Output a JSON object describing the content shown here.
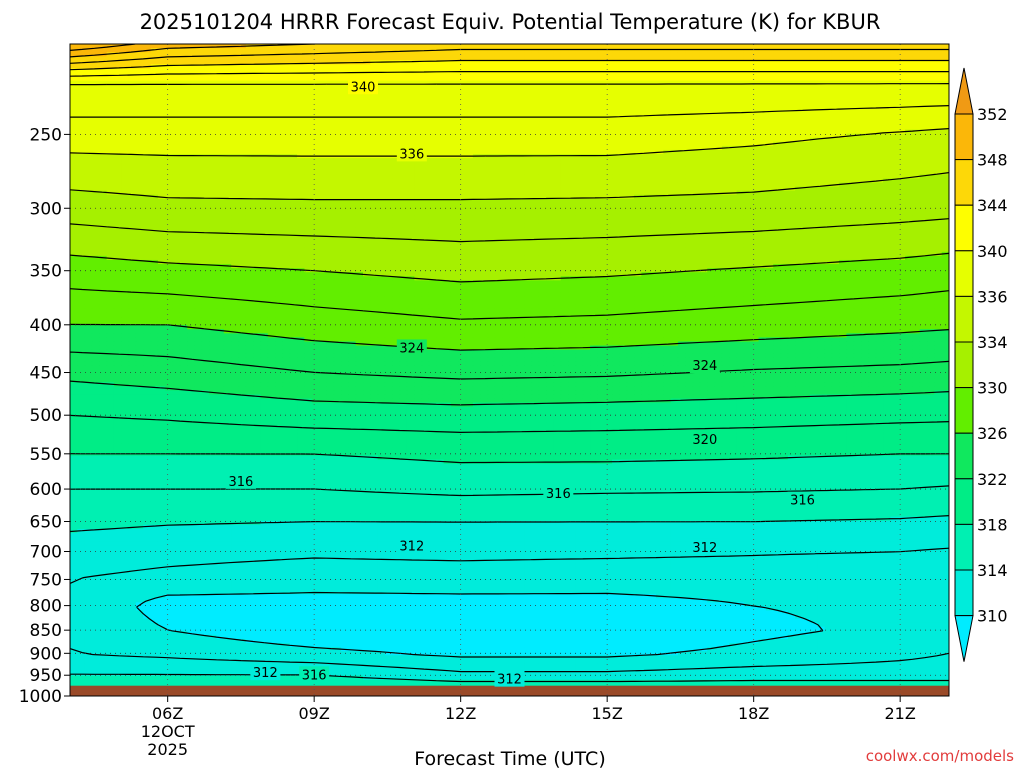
{
  "chart_data": {
    "type": "heatmap",
    "title": "2025101204 HRRR Forecast Equiv. Potential Temperature (K) for KBUR",
    "xlabel": "Forecast Time (UTC)",
    "ylabel": "",
    "watermark": "coolwx.com/models",
    "x_ticks": [
      "06Z",
      "09Z",
      "12Z",
      "15Z",
      "18Z",
      "21Z"
    ],
    "x_tick_hours": [
      6,
      9,
      12,
      15,
      18,
      21
    ],
    "x_date_lines": [
      "12OCT",
      "2025"
    ],
    "xlim_hours": [
      4,
      22
    ],
    "y_ticks": [
      250,
      300,
      350,
      400,
      450,
      500,
      550,
      600,
      650,
      700,
      750,
      800,
      850,
      900,
      950,
      1000
    ],
    "ylim_hpa": [
      1000,
      200
    ],
    "y_scale": "log-pressure",
    "grid": true,
    "surface_pressure_hpa": 975,
    "surface_color": "#9a4a28",
    "colorbar": {
      "position": "right",
      "tick_labels": [
        352,
        348,
        344,
        340,
        336,
        334,
        330,
        326,
        322,
        318,
        314,
        310
      ],
      "bins": [
        {
          "max": null,
          "color": "#f09a14"
        },
        {
          "max": 352,
          "color": "#fbb709"
        },
        {
          "max": 348,
          "color": "#fdd808"
        },
        {
          "max": 344,
          "color": "#fefe00"
        },
        {
          "max": 340,
          "color": "#e6ff00"
        },
        {
          "max": 336,
          "color": "#c4f700"
        },
        {
          "max": 334,
          "color": "#a6f000"
        },
        {
          "max": 330,
          "color": "#62ee00"
        },
        {
          "max": 326,
          "color": "#10e85e"
        },
        {
          "max": 322,
          "color": "#00ed86"
        },
        {
          "max": 318,
          "color": "#00f0b2"
        },
        {
          "max": 314,
          "color": "#00ecdb"
        },
        {
          "max": 310,
          "color": "#00ecff"
        }
      ],
      "under_color": "#00ecff"
    },
    "contour_interval": 2,
    "series": [
      {
        "hour": 4,
        "profile": [
          [
            975,
            316
          ],
          [
            950,
            314
          ],
          [
            900,
            312
          ],
          [
            850,
            312
          ],
          [
            800,
            312
          ],
          [
            750,
            312
          ],
          [
            700,
            313
          ],
          [
            650,
            314.5
          ],
          [
            600,
            316
          ],
          [
            550,
            318
          ],
          [
            500,
            320
          ],
          [
            450,
            322.5
          ],
          [
            400,
            326
          ],
          [
            350,
            329
          ],
          [
            300,
            333
          ],
          [
            250,
            337
          ],
          [
            220,
            340
          ],
          [
            200,
            352
          ]
        ]
      },
      {
        "hour": 6,
        "profile": [
          [
            975,
            316
          ],
          [
            950,
            314
          ],
          [
            900,
            311.5
          ],
          [
            850,
            310
          ],
          [
            800,
            309
          ],
          [
            750,
            311.5
          ],
          [
            700,
            312.6
          ],
          [
            650,
            314.2
          ],
          [
            600,
            316
          ],
          [
            550,
            318
          ],
          [
            500,
            320.3
          ],
          [
            450,
            323
          ],
          [
            400,
            326
          ],
          [
            350,
            329.5
          ],
          [
            300,
            333.5
          ],
          [
            250,
            337
          ],
          [
            220,
            340
          ],
          [
            200,
            349
          ]
        ]
      },
      {
        "hour": 9,
        "profile": [
          [
            975,
            316
          ],
          [
            950,
            314
          ],
          [
            900,
            310.5
          ],
          [
            850,
            308.5
          ],
          [
            800,
            309
          ],
          [
            750,
            311
          ],
          [
            700,
            312.3
          ],
          [
            650,
            314
          ],
          [
            600,
            316
          ],
          [
            550,
            318
          ],
          [
            500,
            321
          ],
          [
            450,
            324
          ],
          [
            400,
            327
          ],
          [
            350,
            330
          ],
          [
            300,
            333.6
          ],
          [
            250,
            337
          ],
          [
            220,
            340
          ],
          [
            200,
            348
          ]
        ]
      },
      {
        "hour": 12,
        "profile": [
          [
            975,
            315
          ],
          [
            950,
            312.5
          ],
          [
            900,
            309.5
          ],
          [
            850,
            308.5
          ],
          [
            800,
            309.2
          ],
          [
            750,
            311
          ],
          [
            700,
            312.5
          ],
          [
            650,
            314
          ],
          [
            600,
            316.5
          ],
          [
            550,
            318.5
          ],
          [
            500,
            321.2
          ],
          [
            450,
            324.5
          ],
          [
            400,
            327.7
          ],
          [
            350,
            330.6
          ],
          [
            300,
            333.6
          ],
          [
            250,
            337
          ],
          [
            220,
            340
          ],
          [
            200,
            347
          ]
        ]
      },
      {
        "hour": 15,
        "profile": [
          [
            975,
            315
          ],
          [
            950,
            312.5
          ],
          [
            900,
            309.5
          ],
          [
            850,
            308.5
          ],
          [
            800,
            309.3
          ],
          [
            750,
            310.8
          ],
          [
            700,
            312.4
          ],
          [
            650,
            314
          ],
          [
            600,
            316.3
          ],
          [
            550,
            318.5
          ],
          [
            500,
            321
          ],
          [
            450,
            324.3
          ],
          [
            400,
            327.5
          ],
          [
            350,
            330.3
          ],
          [
            300,
            333.5
          ],
          [
            250,
            337
          ],
          [
            220,
            340
          ],
          [
            200,
            347
          ]
        ]
      },
      {
        "hour": 18,
        "profile": [
          [
            975,
            315
          ],
          [
            950,
            313
          ],
          [
            900,
            310.5
          ],
          [
            850,
            309.5
          ],
          [
            800,
            310
          ],
          [
            750,
            310.8
          ],
          [
            700,
            312.2
          ],
          [
            650,
            314
          ],
          [
            600,
            316.2
          ],
          [
            550,
            318.3
          ],
          [
            500,
            320.8
          ],
          [
            450,
            323.8
          ],
          [
            400,
            327
          ],
          [
            350,
            329.8
          ],
          [
            300,
            333.3
          ],
          [
            250,
            336.5
          ],
          [
            220,
            340
          ],
          [
            200,
            347
          ]
        ]
      },
      {
        "hour": 21,
        "profile": [
          [
            975,
            315
          ],
          [
            950,
            313
          ],
          [
            900,
            311.5
          ],
          [
            850,
            310.5
          ],
          [
            800,
            310.5
          ],
          [
            750,
            310.5
          ],
          [
            700,
            312
          ],
          [
            650,
            313.8
          ],
          [
            600,
            316
          ],
          [
            550,
            318
          ],
          [
            500,
            320.5
          ],
          [
            450,
            323.5
          ],
          [
            400,
            326.5
          ],
          [
            350,
            329.3
          ],
          [
            300,
            332.8
          ],
          [
            250,
            335.8
          ],
          [
            220,
            340
          ],
          [
            200,
            347
          ]
        ]
      },
      {
        "hour": 22,
        "profile": [
          [
            975,
            315
          ],
          [
            950,
            313
          ],
          [
            900,
            312
          ],
          [
            850,
            311
          ],
          [
            800,
            311
          ],
          [
            750,
            310.2
          ],
          [
            700,
            311.8
          ],
          [
            650,
            313.6
          ],
          [
            600,
            315.8
          ],
          [
            550,
            318
          ],
          [
            500,
            320.4
          ],
          [
            450,
            323.3
          ],
          [
            400,
            326.3
          ],
          [
            350,
            329
          ],
          [
            300,
            332.6
          ],
          [
            250,
            335.5
          ],
          [
            220,
            340
          ],
          [
            200,
            347
          ]
        ]
      }
    ],
    "contour_labels": [
      {
        "value": 340,
        "hour": 10.0,
        "pres": 222
      },
      {
        "value": 336,
        "hour": 11.0,
        "pres": 262
      },
      {
        "value": 324,
        "hour": 11.0,
        "pres": 423
      },
      {
        "value": 324,
        "hour": 17.0,
        "pres": 442
      },
      {
        "value": 320,
        "hour": 17.0,
        "pres": 530
      },
      {
        "value": 316,
        "hour": 7.5,
        "pres": 588
      },
      {
        "value": 316,
        "hour": 14.0,
        "pres": 606
      },
      {
        "value": 316,
        "hour": 19.0,
        "pres": 616
      },
      {
        "value": 312,
        "hour": 11.0,
        "pres": 690
      },
      {
        "value": 312,
        "hour": 17.0,
        "pres": 692
      },
      {
        "value": 312,
        "hour": 8.0,
        "pres": 943
      },
      {
        "value": 316,
        "hour": 9.0,
        "pres": 948
      },
      {
        "value": 312,
        "hour": 13.0,
        "pres": 958
      }
    ]
  }
}
